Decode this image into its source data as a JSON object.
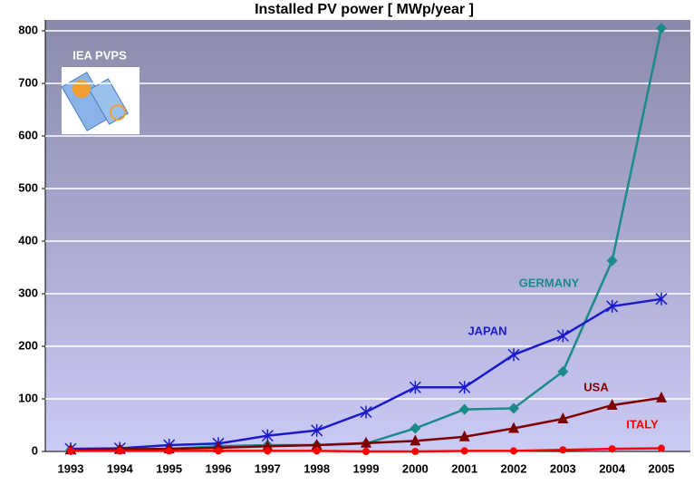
{
  "chart_data": {
    "type": "line",
    "title": "Installed PV power    [ MWp/year ]",
    "annotations": [
      "IEA PVPS"
    ],
    "categories": [
      "1993",
      "1994",
      "1995",
      "1996",
      "1997",
      "1998",
      "1999",
      "2000",
      "2001",
      "2002",
      "2003",
      "2004",
      "2005"
    ],
    "series": [
      {
        "name": "GERMANY",
        "color": "#1a8a8a",
        "marker": "diamond",
        "values": [
          3,
          4,
          5,
          10,
          12,
          12,
          15,
          44,
          80,
          82,
          152,
          363,
          805
        ]
      },
      {
        "name": "JAPAN",
        "color": "#1a1acc",
        "marker": "asterisk",
        "values": [
          5,
          6,
          12,
          15,
          30,
          40,
          75,
          122,
          122,
          184,
          220,
          276,
          290
        ]
      },
      {
        "name": "USA",
        "color": "#800000",
        "marker": "triangle",
        "values": [
          3,
          4,
          5,
          7,
          10,
          12,
          16,
          20,
          28,
          44,
          62,
          88,
          102
        ]
      },
      {
        "name": "ITALY",
        "color": "#ff0000",
        "marker": "circle",
        "values": [
          1,
          1,
          1,
          1,
          1,
          1,
          0,
          0,
          1,
          1,
          3,
          5,
          6
        ]
      }
    ],
    "ylim": [
      0,
      800
    ],
    "yticks": [
      0,
      100,
      200,
      300,
      400,
      500,
      600,
      700,
      800
    ],
    "grid": true
  }
}
